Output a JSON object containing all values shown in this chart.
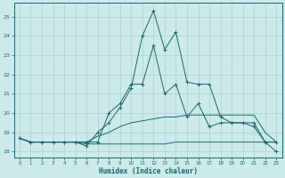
{
  "xlabel": "Humidex (Indice chaleur)",
  "x_ticks": [
    0,
    1,
    2,
    3,
    4,
    5,
    6,
    7,
    8,
    9,
    10,
    11,
    12,
    13,
    14,
    15,
    16,
    17,
    18,
    19,
    20,
    21,
    22,
    23
  ],
  "ylim": [
    17.7,
    25.7
  ],
  "yticks": [
    18,
    19,
    20,
    21,
    22,
    23,
    24,
    25
  ],
  "xlim": [
    -0.5,
    23.5
  ],
  "bg_color": "#cceaea",
  "line_color": "#1a6666",
  "grid_color": "#aacfcf",
  "series1": [
    18.7,
    18.5,
    18.5,
    18.5,
    18.5,
    18.5,
    18.4,
    18.4,
    18.4,
    18.4,
    18.4,
    18.4,
    18.4,
    18.4,
    18.5,
    18.5,
    18.5,
    18.5,
    18.5,
    18.5,
    18.5,
    18.5,
    18.5,
    18.5
  ],
  "series2": [
    18.7,
    18.5,
    18.5,
    18.5,
    18.5,
    18.5,
    18.5,
    18.8,
    19.0,
    19.3,
    19.5,
    19.6,
    19.7,
    19.8,
    19.8,
    19.9,
    19.9,
    19.9,
    19.9,
    19.9,
    19.9,
    19.9,
    19.0,
    18.5
  ],
  "series3": [
    18.7,
    18.5,
    18.5,
    18.5,
    18.5,
    18.5,
    18.3,
    19.0,
    19.5,
    20.3,
    21.3,
    24.0,
    25.3,
    23.3,
    24.2,
    21.6,
    21.5,
    21.5,
    19.8,
    19.5,
    19.5,
    19.5,
    18.5,
    18.0
  ],
  "series4": [
    18.7,
    18.5,
    18.5,
    18.5,
    18.5,
    18.5,
    18.5,
    18.5,
    20.0,
    20.5,
    21.5,
    21.5,
    23.5,
    21.0,
    21.5,
    19.8,
    20.5,
    19.3,
    19.5,
    19.5,
    19.5,
    19.3,
    18.5,
    18.5
  ]
}
